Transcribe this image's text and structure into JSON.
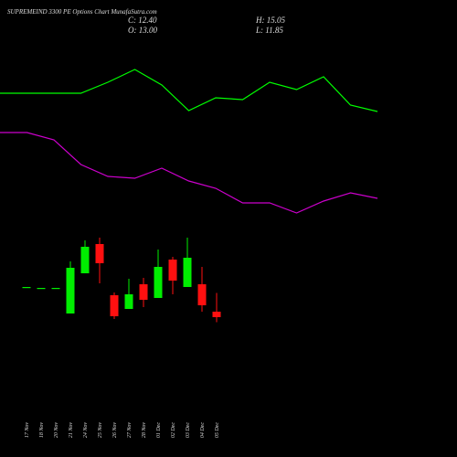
{
  "chart_data": [
    {
      "type": "candlestick",
      "title": "SUPREMEIND 3300  PE Options  Chart MunafaSutra.com",
      "info": [
        "C: 12.40",
        "O: 13.00",
        "H: 15.05",
        "L: 11.85"
      ],
      "categories": [
        "17 Nov",
        "18 Nov",
        "20 Nov",
        "21 Nov",
        "24 Nov",
        "25 Nov",
        "26 Nov",
        "27 Nov",
        "28 Nov",
        "01 Dec",
        "02 Dec",
        "03 Dec",
        "04 Dec",
        "05 Dec"
      ],
      "open": [
        15.7,
        15.6,
        15.6,
        12.8,
        17.2,
        20.4,
        14.8,
        13.3,
        16.0,
        14.5,
        18.7,
        15.7,
        16.0,
        13.0
      ],
      "high": [
        15.7,
        15.6,
        15.6,
        18.5,
        20.8,
        21.1,
        15.1,
        16.6,
        16.7,
        19.8,
        19.0,
        21.1,
        17.9,
        15.05
      ],
      "low": [
        15.7,
        15.6,
        15.6,
        12.8,
        17.2,
        16.1,
        12.2,
        13.3,
        13.5,
        14.5,
        14.9,
        15.7,
        13.0,
        11.85
      ],
      "close": [
        15.7,
        15.6,
        15.6,
        17.8,
        20.1,
        18.3,
        12.5,
        14.9,
        14.3,
        17.9,
        16.4,
        18.9,
        13.7,
        12.4
      ],
      "up_color": "#00ee00",
      "down_color": "#ff1010",
      "ylim": [
        -2.9,
        47.1
      ]
    },
    {
      "type": "line",
      "series": [
        {
          "color": "#00ff00",
          "values": [
            79.6,
            79.6,
            79.6,
            79.6,
            82,
            84.8,
            81.4,
            75.8,
            78.6,
            78.2,
            82,
            80.4,
            83.2,
            77,
            75.6
          ]
        },
        {
          "color": "#cc00cc",
          "values": [
            71,
            71,
            69.4,
            64,
            61.4,
            61,
            63.2,
            60.4,
            58.8,
            55.6,
            55.6,
            53.4,
            56,
            57.8,
            56.6
          ]
        }
      ],
      "ylim": [
        0,
        100
      ]
    }
  ]
}
